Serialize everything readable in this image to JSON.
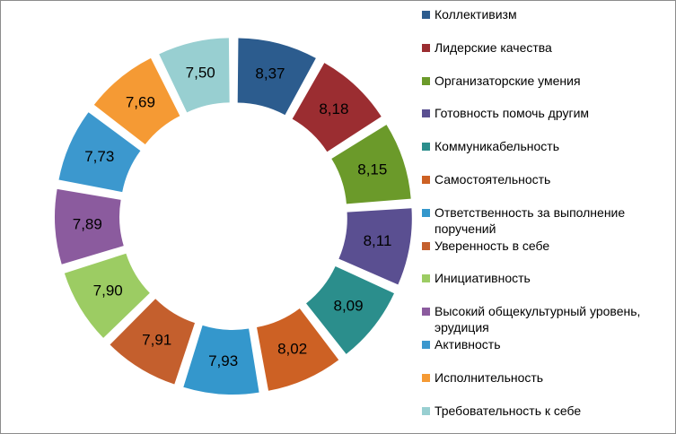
{
  "chart_data": {
    "type": "pie",
    "variant": "donut-exploded",
    "title": "",
    "categories": [
      "Коллективизм",
      "Лидерские качества",
      "Организаторские умения",
      "Готовность помочь другим",
      "Коммуникабельность",
      "Самостоятельность",
      "Ответственность за выполнение поручений",
      "Уверенность в себе",
      "Инициативность",
      "Высокий общекультурный уровень, эрудиция",
      "Активность",
      "Исполнительность",
      "Требовательность к себе"
    ],
    "values": [
      8.37,
      8.18,
      8.15,
      8.11,
      8.09,
      8.02,
      7.93,
      7.91,
      7.9,
      7.89,
      7.73,
      7.69,
      7.5
    ],
    "value_labels": [
      "8,37",
      "8,18",
      "8,15",
      "8,11",
      "8,09",
      "8,02",
      "7,93",
      "7,91",
      "7,90",
      "7,89",
      "7,73",
      "7,69",
      "7,50"
    ],
    "colors": [
      "#2c5c8e",
      "#9b2d31",
      "#6b9a2a",
      "#5a4f91",
      "#2b8e8c",
      "#cd6124",
      "#3497cc",
      "#c45f2d",
      "#9ccc63",
      "#8b5b9e",
      "#3c98ce",
      "#f59a34",
      "#98cfd1"
    ],
    "label_color": "#000000",
    "legend_placement": "right"
  }
}
